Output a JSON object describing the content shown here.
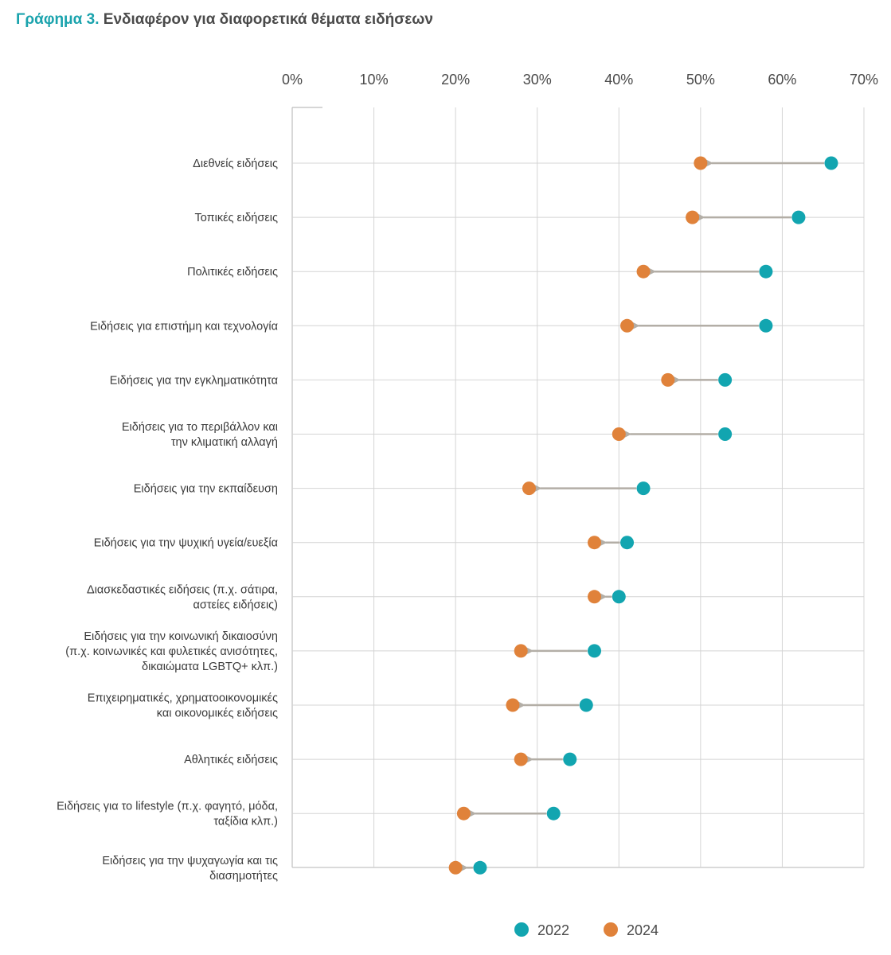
{
  "title": {
    "prefix": "Γράφημα 3.",
    "main": "Ενδιαφέρον για διαφορετικά θέματα ειδήσεων"
  },
  "colors": {
    "series_2022": "#12a5b0",
    "series_2024": "#e0823a",
    "arrow": "#b3aea6",
    "grid": "#d4d4d4"
  },
  "chart_data": {
    "type": "dumbbell",
    "xlim": [
      0,
      70
    ],
    "x_ticks": [
      "0%",
      "10%",
      "20%",
      "30%",
      "40%",
      "50%",
      "60%",
      "70%"
    ],
    "x_tick_values": [
      0,
      10,
      20,
      30,
      40,
      50,
      60,
      70
    ],
    "grid": true,
    "legend_position": "bottom",
    "categories": [
      [
        "Διεθνείς ειδήσεις"
      ],
      [
        "Τοπικές ειδήσεις"
      ],
      [
        "Πολιτικές ειδήσεις"
      ],
      [
        "Ειδήσεις για επιστήμη και τεχνολογία"
      ],
      [
        "Ειδήσεις για την εγκληματικότητα"
      ],
      [
        "Ειδήσεις για το περιβάλλον και",
        "την κλιματική αλλαγή"
      ],
      [
        "Ειδήσεις για την εκπαίδευση"
      ],
      [
        "Ειδήσεις για την ψυχική υγεία/ευεξία"
      ],
      [
        "Διασκεδαστικές ειδήσεις (π.χ. σάτιρα,",
        "αστείες ειδήσεις)"
      ],
      [
        "Ειδήσεις για την κοινωνική δικαιοσύνη",
        "(π.χ. κοινωνικές και φυλετικές ανισότητες,",
        "δικαιώματα LGBTQ+ κλπ.)"
      ],
      [
        "Επιχειρηματικές, χρηματοοικονομικές",
        "και οικονομικές ειδήσεις"
      ],
      [
        "Αθλητικές ειδήσεις"
      ],
      [
        "Ειδήσεις για το lifestyle (π.χ. φαγητό, μόδα,",
        "ταξίδια κλπ.)"
      ],
      [
        "Ειδήσεις για την ψυχαγωγία και τις",
        "διασημοτήτες"
      ]
    ],
    "series": [
      {
        "name": "2022",
        "values": [
          66,
          62,
          58,
          58,
          53,
          53,
          43,
          41,
          40,
          37,
          36,
          34,
          32,
          23
        ]
      },
      {
        "name": "2024",
        "values": [
          50,
          49,
          43,
          41,
          46,
          40,
          29,
          37,
          37,
          28,
          27,
          28,
          21,
          20
        ]
      }
    ]
  }
}
